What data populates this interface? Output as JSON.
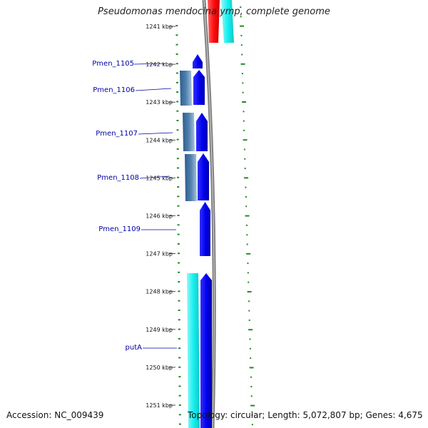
{
  "title": "Pseudomonas mendocina ymp, complete genome",
  "accession": "Accession: NC_009439",
  "summary": "Topology: circular; Length: 5,072,807 bp; Genes: 4,675",
  "colors": {
    "gene_blue": "#0000ee",
    "gene_steelblue": "#4f7fae",
    "gene_cyan": "#19f0f0",
    "gene_red": "#ff1010",
    "backbone": "#808080",
    "tick_green": "#228b22",
    "label_blue": "#0000aa"
  },
  "ticks": [
    {
      "label": "1241 kbp"
    },
    {
      "label": "1242 kbp"
    },
    {
      "label": "1243 kbp"
    },
    {
      "label": "1244 kbp"
    },
    {
      "label": "1245 kbp"
    },
    {
      "label": "1246 kbp"
    },
    {
      "label": "1247 kbp"
    },
    {
      "label": "1248 kbp"
    },
    {
      "label": "1249 kbp"
    },
    {
      "label": "1250 kbp"
    },
    {
      "label": "1251 kbp"
    }
  ],
  "gene_labels": [
    {
      "name": "Pmen_1105"
    },
    {
      "name": "Pmen_1106"
    },
    {
      "name": "Pmen_1107"
    },
    {
      "name": "Pmen_1108"
    },
    {
      "name": "Pmen_1109"
    },
    {
      "name": "putA"
    }
  ]
}
